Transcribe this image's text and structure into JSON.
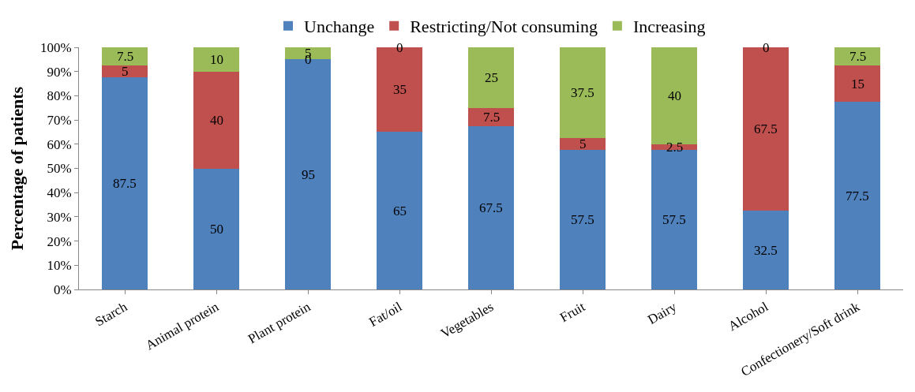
{
  "chart_data": {
    "type": "bar",
    "stacked": true,
    "ylabel": "Percentage of patients",
    "legend": "top",
    "data_labels": true,
    "categories": [
      "Starch",
      "Animal protein",
      "Plant protein",
      "Fat/oil",
      "Vegetables",
      "Fruit",
      "Dairy",
      "Alcohol",
      "Confectionery/Soft drink"
    ],
    "ylim": [
      0,
      100
    ],
    "yticks": [
      {
        "value": 0,
        "label": "0%"
      },
      {
        "value": 10,
        "label": "10%"
      },
      {
        "value": 20,
        "label": "20%"
      },
      {
        "value": 30,
        "label": "30%"
      },
      {
        "value": 40,
        "label": "40%"
      },
      {
        "value": 50,
        "label": "50%"
      },
      {
        "value": 60,
        "label": "60%"
      },
      {
        "value": 70,
        "label": "70%"
      },
      {
        "value": 80,
        "label": "80%"
      },
      {
        "value": 90,
        "label": "90%"
      },
      {
        "value": 100,
        "label": "100%"
      }
    ],
    "series": [
      {
        "name": "Unchange",
        "color": "#4f81bd",
        "values": [
          87.5,
          50,
          95,
          65,
          67.5,
          57.5,
          57.5,
          32.5,
          77.5
        ]
      },
      {
        "name": "Restricting/Not consuming",
        "color": "#c0504d",
        "values": [
          5,
          40,
          0,
          35,
          7.5,
          5,
          2.5,
          67.5,
          15
        ]
      },
      {
        "name": "Increasing",
        "color": "#9bbb59",
        "values": [
          7.5,
          10,
          5,
          0,
          25,
          37.5,
          40,
          0,
          7.5
        ]
      }
    ]
  }
}
